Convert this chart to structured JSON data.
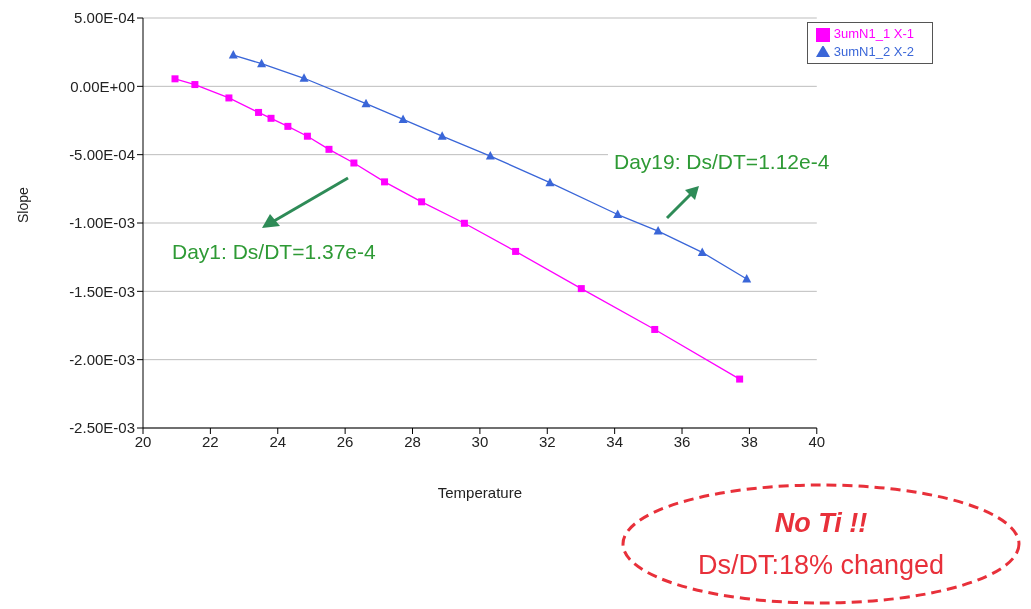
{
  "chart_data": {
    "type": "line",
    "xlabel": "Temperature",
    "ylabel": "Slope",
    "xlim": [
      20,
      40
    ],
    "xticks": [
      20,
      22,
      24,
      26,
      28,
      30,
      32,
      34,
      36,
      38,
      40
    ],
    "ylim": [
      -0.0025,
      0.0005
    ],
    "yticks": [
      {
        "value": 0.0005,
        "label": "5.00E-04"
      },
      {
        "value": 0,
        "label": "0.00E+00"
      },
      {
        "value": -0.0005,
        "label": "-5.00E-04"
      },
      {
        "value": -0.001,
        "label": "-1.00E-03"
      },
      {
        "value": -0.0015,
        "label": "-1.50E-03"
      },
      {
        "value": -0.002,
        "label": "-2.00E-03"
      },
      {
        "value": -0.0025,
        "label": "-2.50E-03"
      }
    ],
    "grid": "y",
    "legend": "top right",
    "series": [
      {
        "name": "3umN1_2 X-2",
        "color": "#3a66d8",
        "marker": "triangle",
        "x": [
          22.68,
          23.52,
          24.78,
          26.62,
          27.72,
          28.88,
          30.31,
          32.08,
          34.09,
          35.29,
          36.6,
          37.92
        ],
        "values": [
          0.000229,
          0.000166,
          5.9e-05,
          -0.000127,
          -0.000242,
          -0.000365,
          -0.00051,
          -0.000705,
          -0.000938,
          -0.001059,
          -0.001215,
          -0.00141
        ]
      },
      {
        "name": "3umN1_1 X-1",
        "color": "#ff00ff",
        "marker": "square",
        "x": [
          20.95,
          21.54,
          22.55,
          23.43,
          23.8,
          24.3,
          24.88,
          25.52,
          26.26,
          27.17,
          28.27,
          29.54,
          31.06,
          33.01,
          35.19,
          37.71
        ],
        "values": [
          5.5e-05,
          1.3e-05,
          -8.5e-05,
          -0.000191,
          -0.000234,
          -0.000293,
          -0.000365,
          -0.000461,
          -0.000561,
          -0.000699,
          -0.000845,
          -0.001002,
          -0.001208,
          -0.00148,
          -0.001779,
          -0.002142
        ]
      }
    ],
    "annotations": [
      "Day1: Ds/DT=1.37e-4",
      "Day19: Ds/DT=1.12e-4",
      "No Ti !!",
      "Ds/DT:18% changed"
    ]
  }
}
